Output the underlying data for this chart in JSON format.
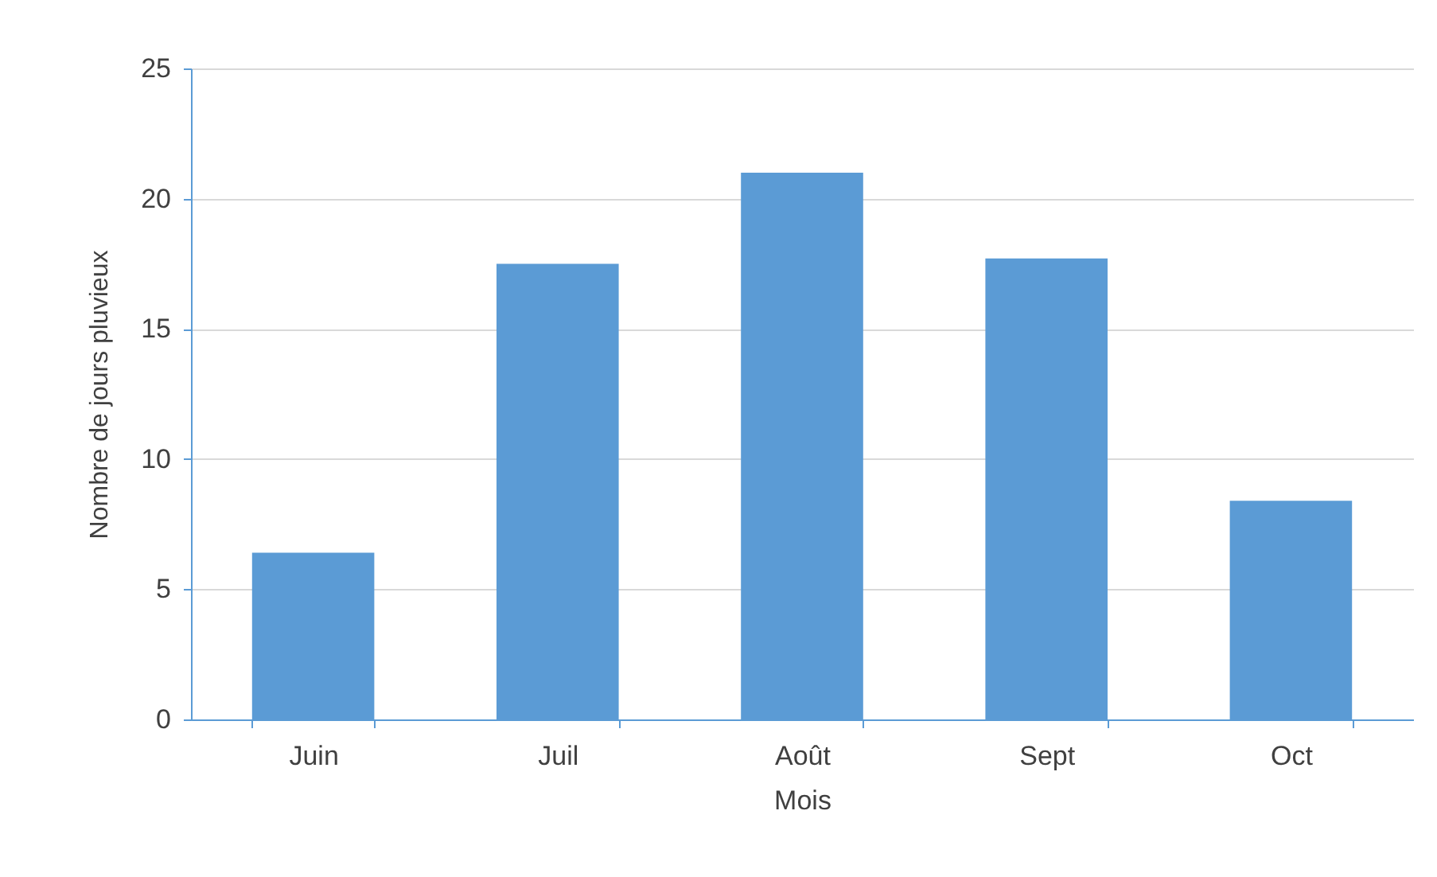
{
  "chart_data": {
    "type": "bar",
    "xlabel": "Mois",
    "ylabel": "Nombre de jours pluvieux",
    "categories": [
      "Juin",
      "Juil",
      "Août",
      "Sept",
      "Oct"
    ],
    "values": [
      6.4,
      17.5,
      21,
      17.7,
      8.4
    ],
    "color": "#5b9bd5",
    "ylim": [
      0,
      25
    ],
    "yticks": [
      0,
      5,
      10,
      15,
      20,
      25
    ],
    "grid": "y"
  }
}
